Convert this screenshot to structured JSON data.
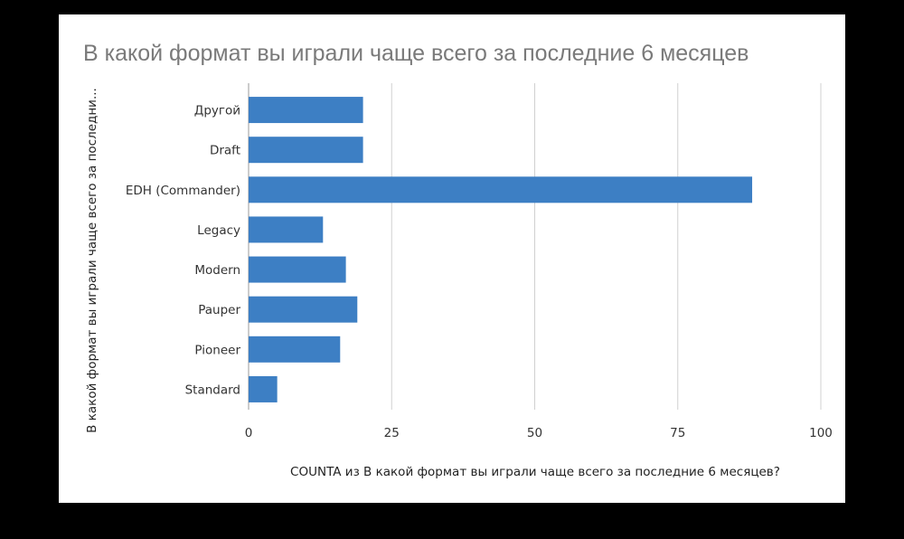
{
  "chart_data": {
    "type": "bar",
    "orientation": "horizontal",
    "title": "В какой формат вы играли чаще всего за последние 6 месяцев",
    "xlabel": "COUNTA из В какой формат вы играли чаще всего за последние 6 месяцев?",
    "ylabel": "В какой формат вы играли чаще всего за последни...",
    "categories": [
      "Другой",
      "Draft",
      "EDH (Commander)",
      "Legacy",
      "Modern",
      "Pauper",
      "Pioneer",
      "Standard"
    ],
    "values": [
      20,
      20,
      88,
      13,
      17,
      19,
      16,
      5
    ],
    "xlim": [
      0,
      100
    ],
    "xticks": [
      0,
      25,
      50,
      75,
      100
    ],
    "grid": true,
    "legend": "none",
    "bar_color": "#3d7fc4"
  }
}
